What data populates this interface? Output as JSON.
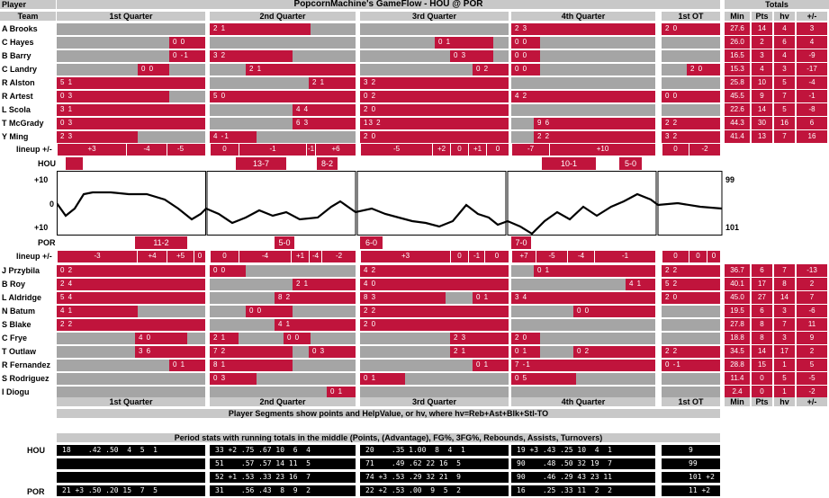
{
  "header": {
    "player_col": "Player",
    "title": "PopcornMachine's GameFlow - HOU @ POR",
    "totals_col": "Totals",
    "team_col": "Team",
    "quarters": [
      "1st Quarter",
      "2nd Quarter",
      "3rd Quarter",
      "4th Quarter",
      "1st OT"
    ],
    "stat_cols": [
      "Min",
      "Pts",
      "hv",
      "+/-"
    ]
  },
  "hou_players": [
    {
      "name": "A Brooks",
      "min": "27.6",
      "pts": "14",
      "hv": "4",
      "pm": "3"
    },
    {
      "name": "C Hayes",
      "min": "26.0",
      "pts": "2",
      "hv": "6",
      "pm": "4"
    },
    {
      "name": "B Barry",
      "min": "16.5",
      "pts": "3",
      "hv": "4",
      "pm": "-9"
    },
    {
      "name": "C Landry",
      "min": "15.3",
      "pts": "4",
      "hv": "3",
      "pm": "-17"
    },
    {
      "name": "R Alston",
      "min": "25.8",
      "pts": "10",
      "hv": "5",
      "pm": "-4"
    },
    {
      "name": "R Artest",
      "min": "45.5",
      "pts": "9",
      "hv": "7",
      "pm": "-1"
    },
    {
      "name": "L Scola",
      "min": "22.6",
      "pts": "14",
      "hv": "5",
      "pm": "-8"
    },
    {
      "name": "T McGrady",
      "min": "44.3",
      "pts": "30",
      "hv": "16",
      "pm": "6"
    },
    {
      "name": "Y Ming",
      "min": "41.4",
      "pts": "13",
      "hv": "7",
      "pm": "16"
    }
  ],
  "hou_segments": [
    {
      "row": 0,
      "segs": [
        [
          "2 1",
          233,
          345
        ],
        [
          "2 3",
          568,
          728
        ],
        [
          "2 0",
          735,
          800
        ]
      ]
    },
    {
      "row": 1,
      "segs": [
        [
          "0 0",
          188,
          228
        ],
        [
          "0 1",
          483,
          548
        ],
        [
          "0 0",
          568,
          600
        ]
      ]
    },
    {
      "row": 2,
      "segs": [
        [
          "0 -1",
          188,
          228
        ],
        [
          "3 2",
          233,
          325
        ],
        [
          "0 3",
          500,
          548
        ],
        [
          "0 0",
          568,
          600
        ]
      ]
    },
    {
      "row": 3,
      "segs": [
        [
          "0 0",
          153,
          188
        ],
        [
          "2 1",
          273,
          395
        ],
        [
          "0 2",
          525,
          565
        ],
        [
          "0 0",
          568,
          600
        ],
        [
          "2 0",
          763,
          800
        ]
      ]
    },
    {
      "row": 4,
      "segs": [
        [
          "5 1",
          63,
          228
        ],
        [
          "2 1",
          343,
          395
        ],
        [
          "3 2",
          400,
          565
        ]
      ]
    },
    {
      "row": 5,
      "segs": [
        [
          "0 3",
          63,
          188
        ],
        [
          "5 0",
          233,
          395
        ],
        [
          "0 2",
          400,
          565
        ],
        [
          "4 2",
          568,
          728
        ],
        [
          "0 0",
          735,
          800
        ]
      ]
    },
    {
      "row": 6,
      "segs": [
        [
          "3 1",
          63,
          228
        ],
        [
          "4 4",
          325,
          395
        ],
        [
          "2 0",
          400,
          565
        ]
      ]
    },
    {
      "row": 7,
      "segs": [
        [
          "0 3",
          63,
          228
        ],
        [
          "6 3",
          325,
          395
        ],
        [
          "13 2",
          400,
          565
        ],
        [
          "9 6",
          593,
          728
        ],
        [
          "2 2",
          735,
          800
        ]
      ]
    },
    {
      "row": 8,
      "segs": [
        [
          "2 3",
          63,
          153
        ],
        [
          "4 -1",
          233,
          285
        ],
        [
          "2 0",
          400,
          565
        ],
        [
          "2 2",
          593,
          728
        ],
        [
          "3 2",
          735,
          800
        ]
      ]
    }
  ],
  "hou_lineup": {
    "label": "lineup +/-",
    "items": [
      [
        "+3",
        63,
        140
      ],
      [
        "-4",
        140,
        185
      ],
      [
        "-5",
        185,
        215
      ],
      [
        "0",
        233,
        265
      ],
      [
        "-1",
        265,
        340
      ],
      [
        "-1",
        340,
        350
      ],
      [
        "+6",
        350,
        395
      ],
      [
        "-5",
        400,
        480
      ],
      [
        "+2",
        480,
        500
      ],
      [
        "0",
        500,
        520
      ],
      [
        "+1",
        520,
        540
      ],
      [
        "0",
        540,
        565
      ],
      [
        "-7",
        568,
        610
      ],
      [
        "+10",
        610,
        728
      ],
      [
        "0",
        735,
        765
      ],
      [
        "-2",
        765,
        800
      ]
    ]
  },
  "hou_runs": {
    "label": "HOU",
    "items": [
      [
        "",
        73,
        92
      ],
      [
        "13-7",
        262,
        318
      ],
      [
        "8-2",
        352,
        375
      ],
      [
        "10-1",
        602,
        662
      ],
      [
        "5-0",
        688,
        713
      ]
    ]
  },
  "gameflow": {
    "top_label": "+10",
    "mid_label": "0",
    "bottom_label": "+10",
    "hou_score": "99",
    "por_score": "101"
  },
  "por_runs": {
    "label": "POR",
    "items": [
      [
        "11-2",
        150,
        208
      ],
      [
        "5-0",
        305,
        327
      ],
      [
        "6-0",
        400,
        425
      ],
      [
        "7-0",
        568,
        590
      ]
    ]
  },
  "por_lineup": {
    "label": "lineup +/-",
    "items": [
      [
        "-3",
        63,
        152
      ],
      [
        "+4",
        152,
        185
      ],
      [
        "+5",
        185,
        215
      ],
      [
        "0",
        215,
        228
      ],
      [
        "0",
        233,
        265
      ],
      [
        "-4",
        265,
        323
      ],
      [
        "+1",
        323,
        343
      ],
      [
        "-4",
        343,
        357
      ],
      [
        "-2",
        357,
        395
      ],
      [
        "+3",
        400,
        500
      ],
      [
        "0",
        500,
        520
      ],
      [
        "-1",
        520,
        538
      ],
      [
        "0",
        538,
        565
      ],
      [
        "+7",
        568,
        595
      ],
      [
        "-5",
        595,
        630
      ],
      [
        "-4",
        630,
        660
      ],
      [
        "-1",
        660,
        728
      ],
      [
        "0",
        735,
        765
      ],
      [
        "0",
        765,
        785
      ],
      [
        "0",
        785,
        800
      ]
    ]
  },
  "por_players": [
    {
      "name": "J Przybila",
      "min": "36.7",
      "pts": "6",
      "hv": "7",
      "pm": "-13"
    },
    {
      "name": "B Roy",
      "min": "40.1",
      "pts": "17",
      "hv": "8",
      "pm": "2"
    },
    {
      "name": "L Aldridge",
      "min": "45.0",
      "pts": "27",
      "hv": "14",
      "pm": "7"
    },
    {
      "name": "N Batum",
      "min": "19.5",
      "pts": "6",
      "hv": "3",
      "pm": "-6"
    },
    {
      "name": "S Blake",
      "min": "27.8",
      "pts": "8",
      "hv": "7",
      "pm": "11"
    },
    {
      "name": "C Frye",
      "min": "18.8",
      "pts": "8",
      "hv": "3",
      "pm": "9"
    },
    {
      "name": "T Outlaw",
      "min": "34.5",
      "pts": "14",
      "hv": "17",
      "pm": "2"
    },
    {
      "name": "R Fernandez",
      "min": "28.8",
      "pts": "15",
      "hv": "1",
      "pm": "5"
    },
    {
      "name": "S Rodriguez",
      "min": "11.4",
      "pts": "0",
      "hv": "5",
      "pm": "-5"
    },
    {
      "name": "I Diogu",
      "min": "2.4",
      "pts": "0",
      "hv": "1",
      "pm": "-2"
    }
  ],
  "por_segments": [
    {
      "row": 0,
      "segs": [
        [
          "0 2",
          63,
          228
        ],
        [
          "0 0",
          233,
          273
        ],
        [
          "4 2",
          400,
          565
        ],
        [
          "0 1",
          593,
          728
        ],
        [
          "2 2",
          735,
          800
        ]
      ]
    },
    {
      "row": 1,
      "segs": [
        [
          "2 4",
          63,
          228
        ],
        [
          "2 1",
          325,
          395
        ],
        [
          "4 0",
          400,
          565
        ],
        [
          "4 1",
          695,
          728
        ],
        [
          "5 2",
          735,
          800
        ]
      ]
    },
    {
      "row": 2,
      "segs": [
        [
          "5 4",
          63,
          228
        ],
        [
          "8 2",
          305,
          395
        ],
        [
          "8 3",
          400,
          495
        ],
        [
          "0 1",
          525,
          565
        ],
        [
          "3 4",
          568,
          728
        ],
        [
          "2 0",
          735,
          800
        ]
      ]
    },
    {
      "row": 3,
      "segs": [
        [
          "4 1",
          63,
          153
        ],
        [
          "0 0",
          273,
          325
        ],
        [
          "2 2",
          400,
          565
        ],
        [
          "0 0",
          637,
          728
        ]
      ]
    },
    {
      "row": 4,
      "segs": [
        [
          "2 2",
          63,
          228
        ],
        [
          "4 1",
          305,
          395
        ],
        [
          "2 0",
          400,
          565
        ]
      ]
    },
    {
      "row": 5,
      "segs": [
        [
          "4 0",
          150,
          208
        ],
        [
          "2 1",
          233,
          265
        ],
        [
          "0 0",
          315,
          345
        ],
        [
          "2 3",
          500,
          565
        ],
        [
          "2 0",
          568,
          600
        ]
      ]
    },
    {
      "row": 6,
      "segs": [
        [
          "3 6",
          150,
          228
        ],
        [
          "7 2",
          233,
          325
        ],
        [
          "0 3",
          343,
          395
        ],
        [
          "2 1",
          500,
          565
        ],
        [
          "0 1",
          568,
          600
        ],
        [
          "0 2",
          637,
          728
        ],
        [
          "2 2",
          735,
          800
        ]
      ]
    },
    {
      "row": 7,
      "segs": [
        [
          "0 1",
          188,
          228
        ],
        [
          "8 1",
          233,
          325
        ],
        [
          "0 1",
          525,
          565
        ],
        [
          "7 -1",
          568,
          728
        ],
        [
          "0 -1",
          735,
          800
        ]
      ]
    },
    {
      "row": 8,
      "segs": [
        [
          "0 3",
          233,
          285
        ],
        [
          "0 1",
          400,
          450
        ],
        [
          "0 5",
          568,
          640
        ]
      ]
    },
    {
      "row": 9,
      "segs": [
        [
          "0 1",
          363,
          395
        ]
      ]
    }
  ],
  "footer": {
    "quarters": [
      "1st Quarter",
      "2nd Quarter",
      "3rd Quarter",
      "4th Quarter",
      "1st OT"
    ],
    "stat_cols": [
      "Min",
      "Pts",
      "hv",
      "+/-"
    ],
    "note": "Player Segments show points and HelpValue, or hv, where hv=Reb+Ast+Blk+Stl-TO"
  },
  "period_stats": {
    "title": "Period stats with running totals in the middle (Points, (Advantage), FG%, 3FG%, Rebounds, Assists, Turnovers)",
    "hou_label": "HOU",
    "por_label": "POR",
    "rows": [
      [
        "18    .42 .50  4  5  1",
        "33 +2 .75 .67 10  6  4",
        "20    .35 1.00  8  4  1",
        "19 +3 .43 .25 10  4  1",
        "9"
      ],
      [
        "",
        "51    .57 .57 14 11  5",
        "71    .49 .62 22 16  5",
        "90    .48 .50 32 19  7",
        "99"
      ],
      [
        "",
        "52 +1 .53 .33 23 16  7",
        "74 +3 .53 .29 32 21  9",
        "90    .46 .29 43 23 11",
        "101 +2"
      ],
      [
        "21 +3 .50 .20 15  7  5",
        "31    .56 .43  8  9  2",
        "22 +2 .53 .00  9  5  2",
        "16    .25 .33 11  2  2",
        "11 +2"
      ]
    ]
  }
}
